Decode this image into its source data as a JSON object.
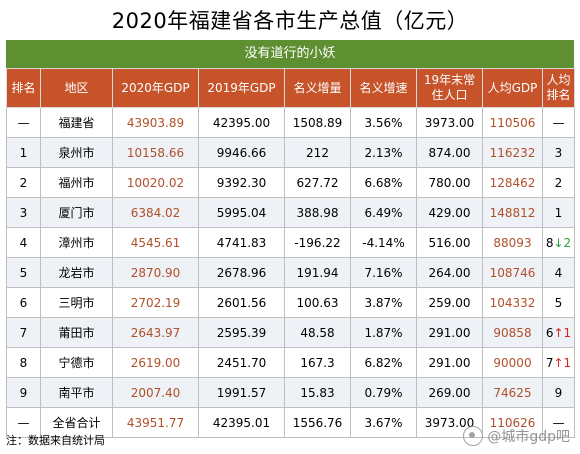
{
  "title": "2020年福建省各市生产总值（亿元）",
  "subtitle": "没有道行的小妖",
  "columns": [
    "排名",
    "地区",
    "2020年GDP",
    "2019年GDP",
    "名义增量",
    "名义增速",
    "19年末常住人口",
    "人均GDP",
    "人均排名"
  ],
  "rows": [
    {
      "rank": "—",
      "region": "福建省",
      "gdp2020": "43903.89",
      "gdp2019": "42395.00",
      "increase": "1508.89",
      "growth": "3.56%",
      "population": "3973.00",
      "percap": "110506",
      "percap_rank": "—",
      "arrow": "",
      "arrow_dir": ""
    },
    {
      "rank": "1",
      "region": "泉州市",
      "gdp2020": "10158.66",
      "gdp2019": "9946.66",
      "increase": "212",
      "growth": "2.13%",
      "population": "874.00",
      "percap": "116232",
      "percap_rank": "3",
      "arrow": "",
      "arrow_dir": ""
    },
    {
      "rank": "2",
      "region": "福州市",
      "gdp2020": "10020.02",
      "gdp2019": "9392.30",
      "increase": "627.72",
      "growth": "6.68%",
      "population": "780.00",
      "percap": "128462",
      "percap_rank": "2",
      "arrow": "",
      "arrow_dir": ""
    },
    {
      "rank": "3",
      "region": "厦门市",
      "gdp2020": "6384.02",
      "gdp2019": "5995.04",
      "increase": "388.98",
      "growth": "6.49%",
      "population": "429.00",
      "percap": "148812",
      "percap_rank": "1",
      "arrow": "",
      "arrow_dir": ""
    },
    {
      "rank": "4",
      "region": "漳州市",
      "gdp2020": "4545.61",
      "gdp2019": "4741.83",
      "increase": "-196.22",
      "growth": "-4.14%",
      "population": "516.00",
      "percap": "88093",
      "percap_rank": "8",
      "arrow": "↓2",
      "arrow_dir": "down"
    },
    {
      "rank": "5",
      "region": "龙岩市",
      "gdp2020": "2870.90",
      "gdp2019": "2678.96",
      "increase": "191.94",
      "growth": "7.16%",
      "population": "264.00",
      "percap": "108746",
      "percap_rank": "4",
      "arrow": "",
      "arrow_dir": ""
    },
    {
      "rank": "6",
      "region": "三明市",
      "gdp2020": "2702.19",
      "gdp2019": "2601.56",
      "increase": "100.63",
      "growth": "3.87%",
      "population": "259.00",
      "percap": "104332",
      "percap_rank": "5",
      "arrow": "",
      "arrow_dir": ""
    },
    {
      "rank": "7",
      "region": "莆田市",
      "gdp2020": "2643.97",
      "gdp2019": "2595.39",
      "increase": "48.58",
      "growth": "1.87%",
      "population": "291.00",
      "percap": "90858",
      "percap_rank": "6",
      "arrow": "↑1",
      "arrow_dir": "up"
    },
    {
      "rank": "8",
      "region": "宁德市",
      "gdp2020": "2619.00",
      "gdp2019": "2451.70",
      "increase": "167.3",
      "growth": "6.82%",
      "population": "291.00",
      "percap": "90000",
      "percap_rank": "7",
      "arrow": "↑1",
      "arrow_dir": "up"
    },
    {
      "rank": "9",
      "region": "南平市",
      "gdp2020": "2007.40",
      "gdp2019": "1991.57",
      "increase": "15.83",
      "growth": "0.79%",
      "population": "269.00",
      "percap": "74625",
      "percap_rank": "9",
      "arrow": "",
      "arrow_dir": ""
    },
    {
      "rank": "—",
      "region": "全省合计",
      "gdp2020": "43951.77",
      "gdp2019": "42395.01",
      "increase": "1556.76",
      "growth": "3.67%",
      "population": "3973.00",
      "percap": "110626",
      "percap_rank": "—",
      "arrow": "",
      "arrow_dir": ""
    }
  ],
  "footnote": "注：数据来自统计局",
  "watermark": "@城市gdp吧",
  "watermark_icon": "weibo-icon",
  "colors": {
    "header_bg": "#c6532a",
    "subtitle_bg": "#5e8f30",
    "gdp_text": "#b0502a",
    "arrow_up": "#d9251d",
    "arrow_down": "#2c9c3c"
  }
}
